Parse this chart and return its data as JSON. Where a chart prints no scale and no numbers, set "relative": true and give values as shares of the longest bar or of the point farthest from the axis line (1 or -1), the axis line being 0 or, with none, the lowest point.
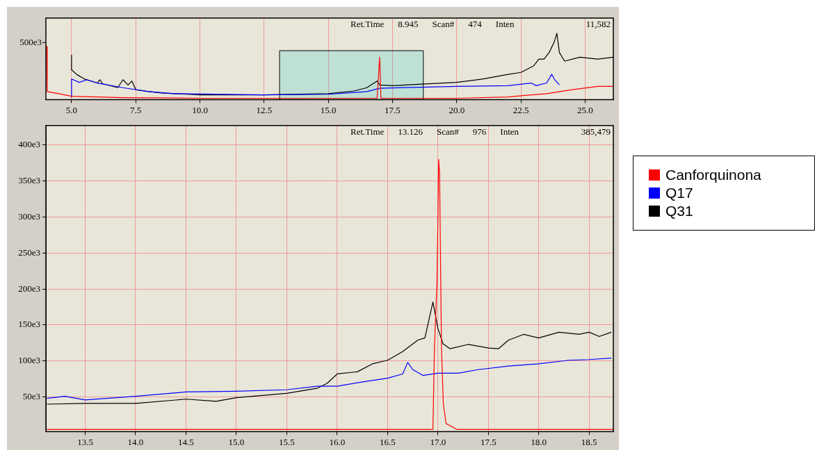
{
  "chart_data": [
    {
      "type": "line",
      "relative": true,
      "annotations": [
        "500e3",
        "Ret.Time",
        "8.945",
        "Scan#",
        "474",
        "Inten",
        "11,582"
      ],
      "xlim": [
        4.0,
        26.1
      ],
      "xticks": [
        {
          "value": 5,
          "label": "5.0"
        },
        {
          "value": 7.5,
          "label": "7.5"
        },
        {
          "value": 10,
          "label": "10.0"
        },
        {
          "value": 12.5,
          "label": "12.5"
        },
        {
          "value": 15,
          "label": "15.0"
        },
        {
          "value": 17.5,
          "label": "17.5"
        },
        {
          "value": 20,
          "label": "20.0"
        },
        {
          "value": 22.5,
          "label": "22.5"
        },
        {
          "value": 25,
          "label": "25.0"
        }
      ],
      "grid": true,
      "legend": false,
      "bands": [
        {
          "axis": "x",
          "from": 13.1,
          "to": 18.7,
          "color": "#00c8c8"
        }
      ],
      "series": [
        {
          "color": "#ff0000",
          "x": [
            4.0,
            4.03,
            4.05,
            4.5,
            5,
            7,
            10,
            16.9,
            17.0,
            17.05,
            17.1,
            20,
            22,
            23.5,
            24.5,
            25.5,
            26.1
          ],
          "values": [
            0.8,
            0.8,
            0.12,
            0.09,
            0.05,
            0.03,
            0.02,
            0.02,
            0.64,
            0.02,
            0.02,
            0.02,
            0.04,
            0.09,
            0.15,
            0.2,
            0.2
          ]
        },
        {
          "color": "#0000ff",
          "x": [
            5.0,
            5.0,
            5.3,
            5.6,
            6.0,
            7.0,
            8.0,
            9,
            12.5,
            15,
            16.5,
            17,
            18,
            20,
            22,
            22.9,
            23.1,
            23.5,
            23.7,
            23.8,
            24.0
          ],
          "values": [
            0.03,
            0.31,
            0.26,
            0.3,
            0.25,
            0.18,
            0.12,
            0.09,
            0.07,
            0.08,
            0.12,
            0.17,
            0.18,
            0.2,
            0.21,
            0.25,
            0.21,
            0.25,
            0.38,
            0.31,
            0.22
          ]
        },
        {
          "color": "#000000",
          "x": [
            5.0,
            5.0,
            5.2,
            5.5,
            6.0,
            6.1,
            6.2,
            6.8,
            7.0,
            7.2,
            7.35,
            7.5,
            8.0,
            8.5,
            9.0,
            10,
            12.5,
            15,
            16,
            16.5,
            16.9,
            17.0,
            17.5,
            18.5,
            20,
            21,
            22,
            22.5,
            23.0,
            23.2,
            23.4,
            23.6,
            23.8,
            23.9,
            24.0,
            24.2,
            24.8,
            25.5,
            26.1
          ],
          "values": [
            0.67,
            0.45,
            0.38,
            0.31,
            0.25,
            0.3,
            0.24,
            0.18,
            0.3,
            0.22,
            0.28,
            0.15,
            0.12,
            0.1,
            0.09,
            0.07,
            0.07,
            0.09,
            0.13,
            0.18,
            0.28,
            0.22,
            0.21,
            0.23,
            0.26,
            0.31,
            0.38,
            0.41,
            0.51,
            0.61,
            0.61,
            0.71,
            0.87,
            1,
            0.71,
            0.58,
            0.64,
            0.61,
            0.64
          ]
        }
      ]
    },
    {
      "type": "line",
      "annotations": [
        "Ret.Time",
        "13.126",
        "Scan#",
        "976",
        "Inten",
        "385,479"
      ],
      "xlim": [
        13.11,
        18.74
      ],
      "xticks": [
        {
          "value": 13.5,
          "label": "13.5"
        },
        {
          "value": 14,
          "label": "14.0"
        },
        {
          "value": 14.5,
          "label": "14.5"
        },
        {
          "value": 15,
          "label": "15.0"
        },
        {
          "value": 15.5,
          "label": "15.5"
        },
        {
          "value": 16,
          "label": "16.0"
        },
        {
          "value": 16.5,
          "label": "16.5"
        },
        {
          "value": 17,
          "label": "17.0"
        },
        {
          "value": 17.5,
          "label": "17.5"
        },
        {
          "value": 18,
          "label": "18.0"
        },
        {
          "value": 18.5,
          "label": "18.5"
        }
      ],
      "ylim": [
        2000,
        427000
      ],
      "yticks": [
        {
          "value": 50000,
          "label": "50e3"
        },
        {
          "value": 100000,
          "label": "100e3"
        },
        {
          "value": 150000,
          "label": "150e3"
        },
        {
          "value": 200000,
          "label": "200e3"
        },
        {
          "value": 250000,
          "label": "250e3"
        },
        {
          "value": 300000,
          "label": "300e3"
        },
        {
          "value": 350000,
          "label": "350e3"
        },
        {
          "value": 400000,
          "label": "400e3"
        }
      ],
      "grid": true,
      "legend": "right",
      "series": [
        {
          "name": "Canforquinona",
          "color": "#ff0000",
          "x": [
            13.12,
            16.9,
            16.95,
            16.965,
            16.99,
            17.0,
            17.007,
            17.016,
            17.023,
            17.035,
            17.053,
            17.081,
            17.162,
            17.185,
            18.74
          ],
          "values": [
            5000,
            5000,
            5000,
            118000,
            209000,
            300000,
            380000,
            362000,
            271000,
            118000,
            41000,
            13000,
            7000,
            5000,
            5000
          ]
        },
        {
          "name": "Q17",
          "color": "#0000ff",
          "x": [
            13.12,
            13.3,
            13.5,
            14.0,
            14.5,
            15.0,
            15.5,
            15.8,
            16.0,
            16.3,
            16.5,
            16.65,
            16.7,
            16.75,
            16.85,
            17.0,
            17.2,
            17.4,
            17.7,
            18.0,
            18.3,
            18.5,
            18.72
          ],
          "values": [
            48000,
            51000,
            46000,
            51000,
            57000,
            58000,
            60000,
            65000,
            65000,
            72000,
            76000,
            82000,
            98000,
            88000,
            80000,
            83000,
            83000,
            88000,
            93000,
            96000,
            101000,
            102000,
            104000
          ]
        },
        {
          "name": "Q31",
          "color": "#000000",
          "x": [
            13.12,
            13.5,
            14.0,
            14.5,
            14.8,
            15.0,
            15.5,
            15.8,
            15.9,
            16.0,
            16.2,
            16.35,
            16.5,
            16.65,
            16.8,
            16.87,
            16.95,
            17.0,
            17.05,
            17.12,
            17.3,
            17.5,
            17.6,
            17.7,
            17.85,
            18.0,
            18.2,
            18.4,
            18.5,
            18.6,
            18.72
          ],
          "values": [
            40000,
            41000,
            41000,
            47000,
            44000,
            49000,
            55000,
            62000,
            69000,
            82000,
            85000,
            96000,
            101000,
            113000,
            129000,
            132000,
            182000,
            145000,
            124000,
            117000,
            123000,
            118000,
            117000,
            129000,
            137000,
            132000,
            140000,
            137000,
            140000,
            134000,
            140000
          ]
        }
      ]
    }
  ]
}
